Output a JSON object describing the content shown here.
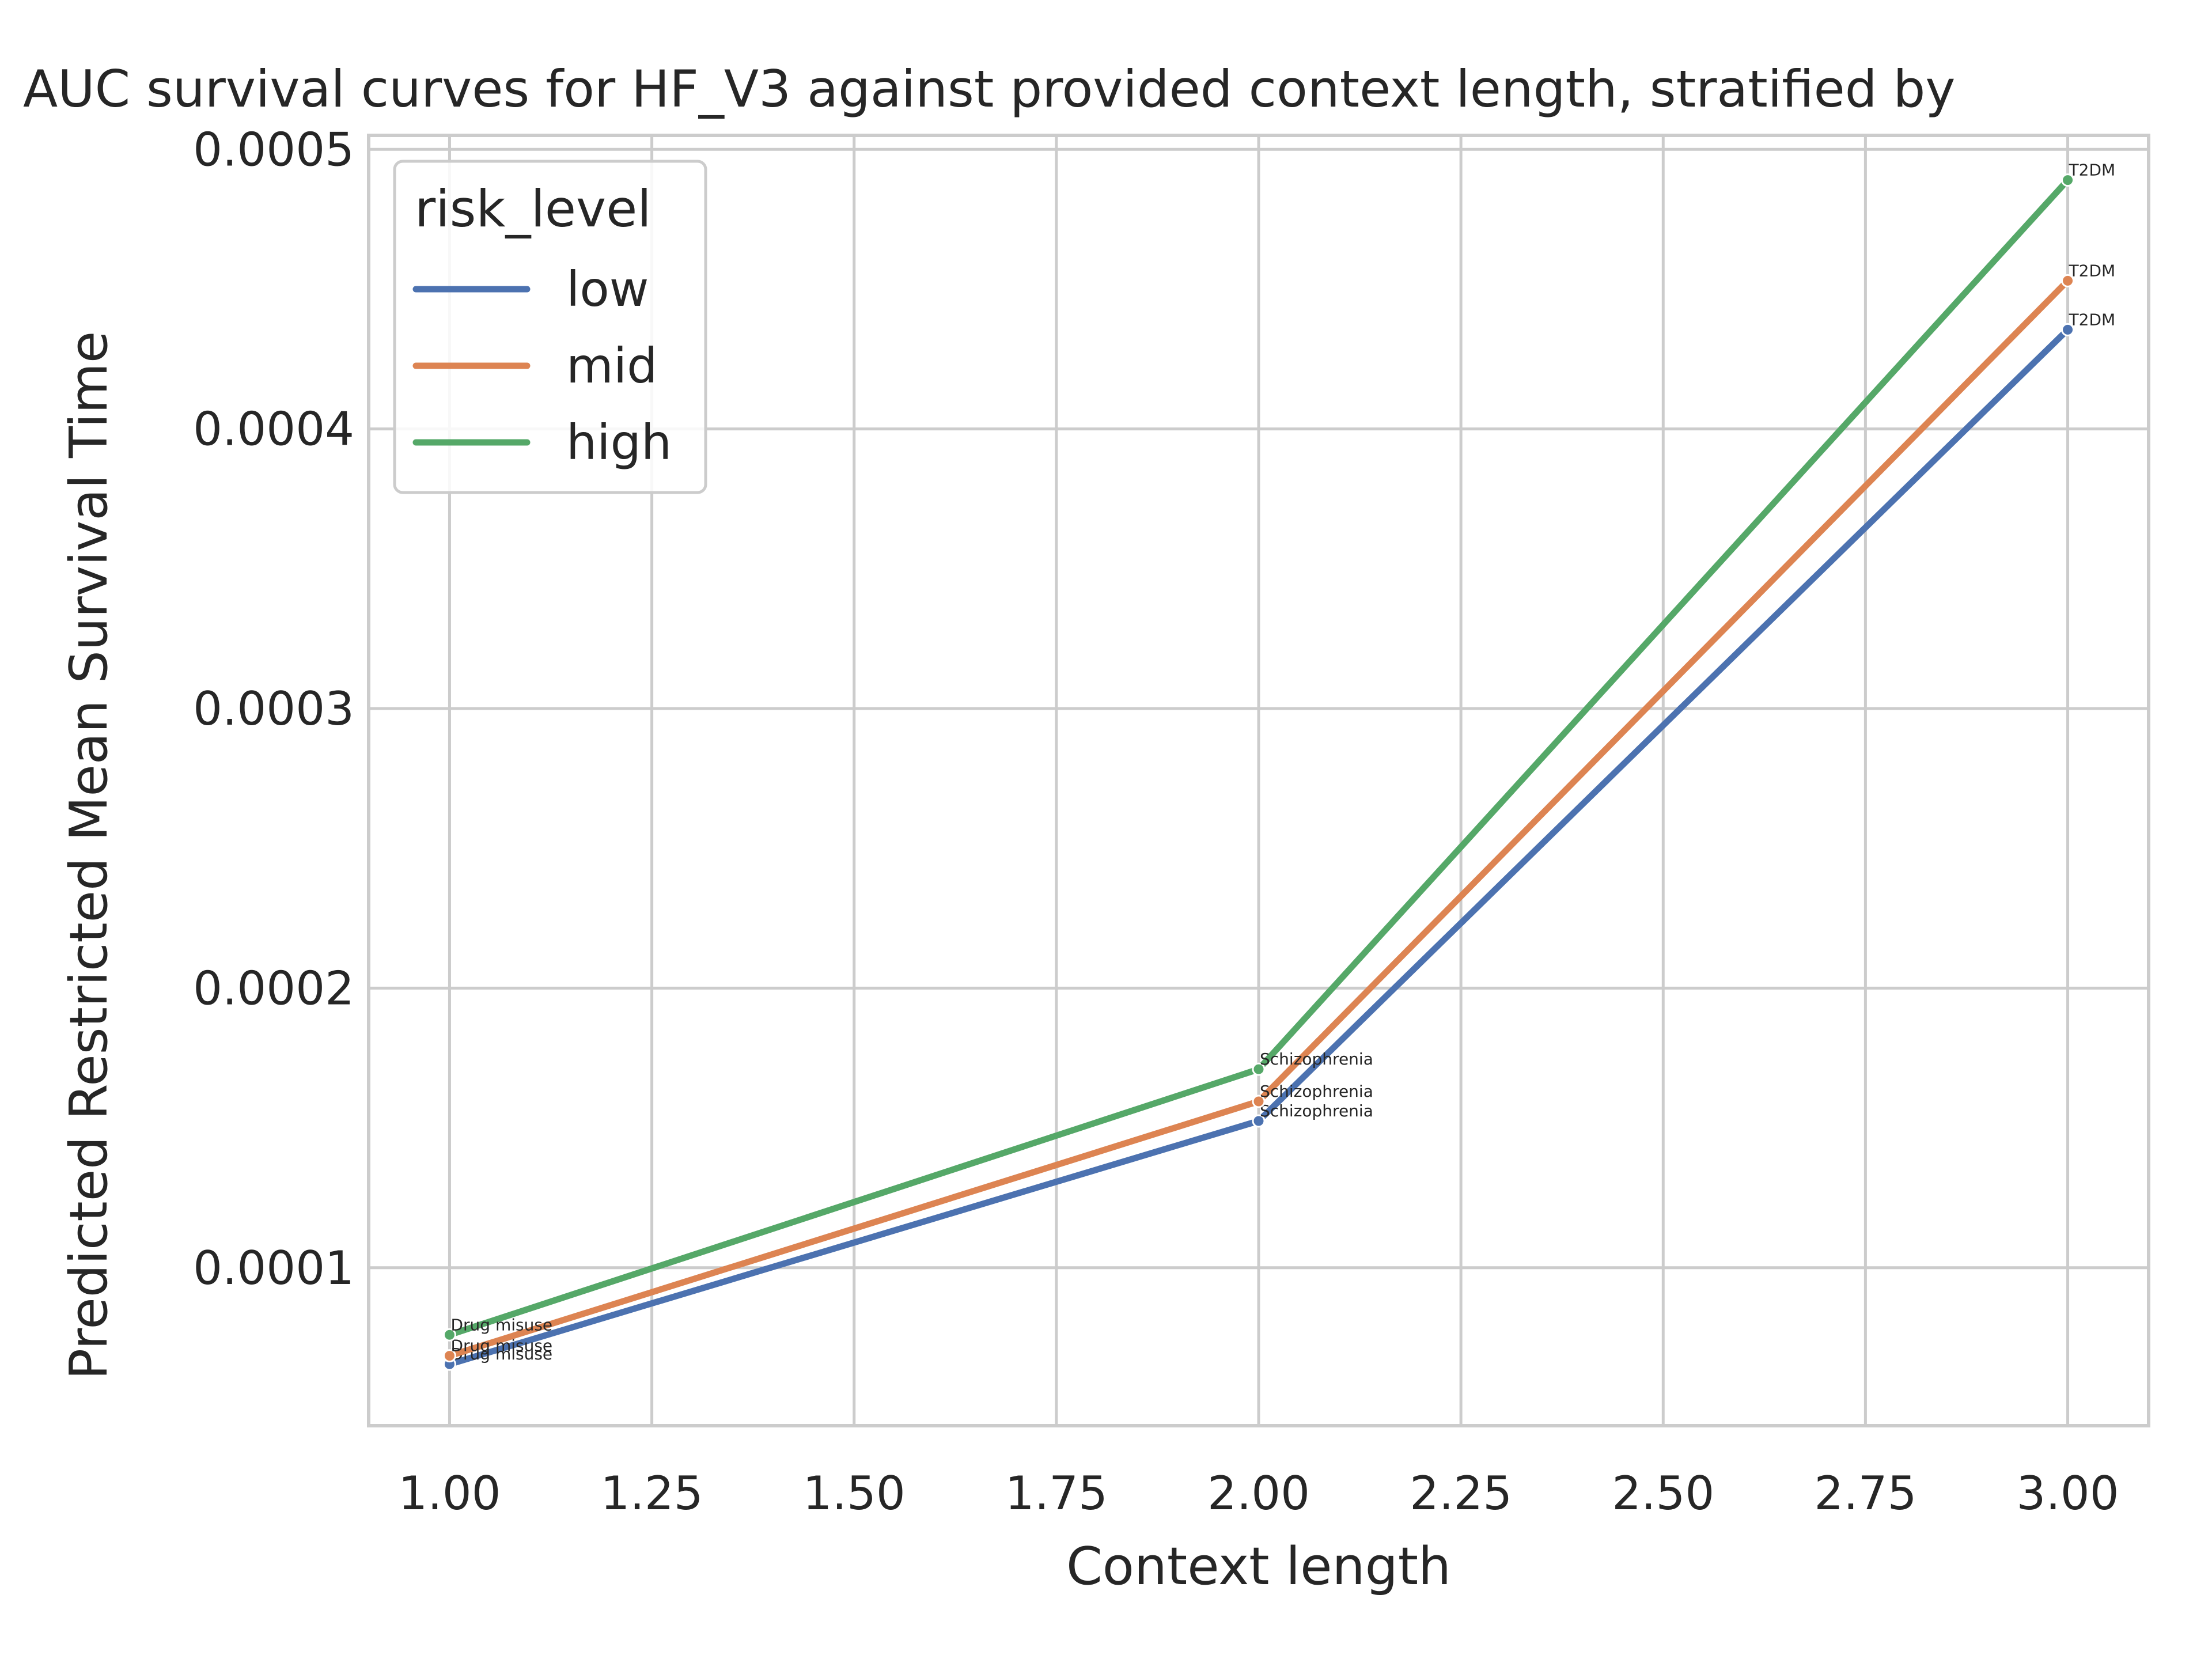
{
  "chart_data": {
    "type": "line",
    "title": "AUC survival curves for HF_V3 against provided context length, stratified by",
    "xlabel": "Context length",
    "ylabel": "Predicted Restricted Mean Survival Time",
    "xlim": [
      0.9,
      3.1
    ],
    "ylim": [
      4.35e-05,
      0.000505
    ],
    "x_ticks": [
      1.0,
      1.25,
      1.5,
      1.75,
      2.0,
      2.25,
      2.5,
      2.75,
      3.0
    ],
    "x_tick_labels": [
      "1.00",
      "1.25",
      "1.50",
      "1.75",
      "2.00",
      "2.25",
      "2.50",
      "2.75",
      "3.00"
    ],
    "y_ticks": [
      0.0001,
      0.0002,
      0.0003,
      0.0004,
      0.0005
    ],
    "y_tick_labels": [
      "0.0001",
      "0.0002",
      "0.0003",
      "0.0004",
      "0.0005"
    ],
    "grid": true,
    "legend": {
      "title": "risk_level",
      "placement": "top-left"
    },
    "x": [
      1.0,
      2.0,
      3.0
    ],
    "point_labels": [
      "Drug misuse",
      "Schizophrenia",
      "T2DM"
    ],
    "series": [
      {
        "name": "low",
        "color": "#4c72b0",
        "values": [
          6.55e-05,
          0.0001525,
          0.0004355
        ]
      },
      {
        "name": "mid",
        "color": "#dd8452",
        "values": [
          6.85e-05,
          0.0001595,
          0.000453
        ]
      },
      {
        "name": "high",
        "color": "#55a868",
        "values": [
          7.6e-05,
          0.000171,
          0.000489
        ]
      }
    ]
  }
}
